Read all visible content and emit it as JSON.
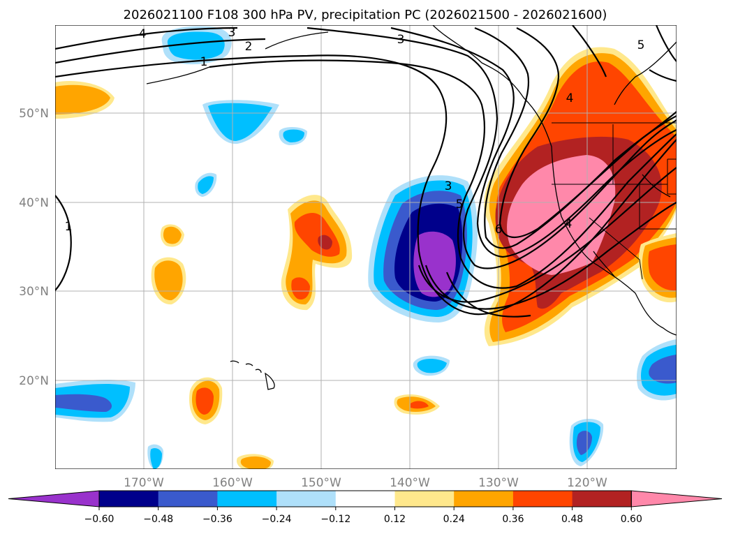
{
  "title": "2026021100 F108 300 hPa PV, precipitation PC (2026021500 - 2026021600)",
  "map": {
    "lat_labels": [
      "50°N",
      "40°N",
      "30°N",
      "20°N"
    ],
    "lon_labels": [
      "170°W",
      "160°W",
      "150°W",
      "140°W",
      "130°W",
      "120°W"
    ],
    "pv_contour_labels": [
      "4",
      "3",
      "2",
      "1",
      "3",
      "5",
      "3",
      "5",
      "6",
      "4",
      "4",
      "1"
    ]
  },
  "colorbar": {
    "tick_labels": [
      "−0.60",
      "−0.48",
      "−0.36",
      "−0.24",
      "−0.12",
      "0.12",
      "0.24",
      "0.36",
      "0.48",
      "0.60"
    ],
    "colors": [
      "#9932cc",
      "#00008b",
      "#3a5acd",
      "#00bfff",
      "#afe0fa",
      "#ffffff",
      "#ffe88c",
      "#ffa500",
      "#ff4500",
      "#b22222",
      "#ff88aa"
    ]
  }
}
